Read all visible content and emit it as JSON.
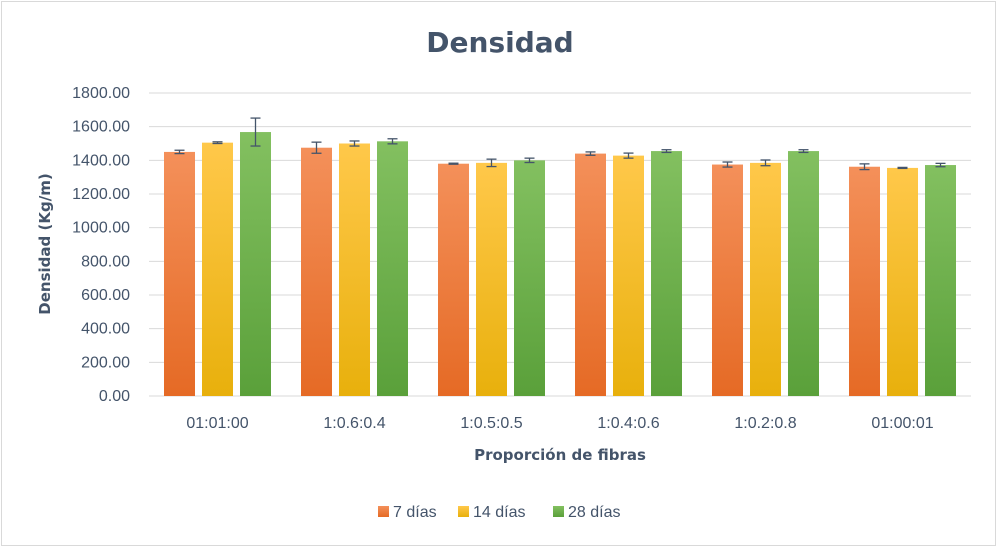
{
  "chart_data": {
    "type": "bar",
    "title": "Densidad",
    "xlabel": "Proporción de fibras",
    "ylabel": "Densidad (Kg/m)",
    "ylim": [
      0,
      1800
    ],
    "yticks": [
      "0.00",
      "200.00",
      "400.00",
      "600.00",
      "800.00",
      "1000.00",
      "1200.00",
      "1400.00",
      "1600.00",
      "1800.00"
    ],
    "categories": [
      "01:01:00",
      "1:0.6:0.4",
      "1:0.5:0.5",
      "1:0.4:0.6",
      "1:0.2:0.8",
      "01:00:01"
    ],
    "series": [
      {
        "name": "7 días",
        "color_top": "#f4905a",
        "color_bottom": "#e56a25",
        "values": [
          1450,
          1475,
          1380,
          1440,
          1375,
          1362
        ],
        "errors": [
          10,
          33,
          3,
          10,
          15,
          17
        ]
      },
      {
        "name": "14 días",
        "color_top": "#ffc84a",
        "color_bottom": "#e8b00c",
        "values": [
          1505,
          1500,
          1385,
          1428,
          1385,
          1355
        ],
        "errors": [
          5,
          15,
          22,
          15,
          17,
          3
        ]
      },
      {
        "name": "28 días",
        "color_top": "#83c060",
        "color_bottom": "#5aa03a",
        "values": [
          1568,
          1513,
          1400,
          1455,
          1455,
          1372
        ],
        "errors": [
          83,
          15,
          13,
          8,
          8,
          10
        ]
      }
    ],
    "grid": true,
    "legend": "bottom"
  }
}
